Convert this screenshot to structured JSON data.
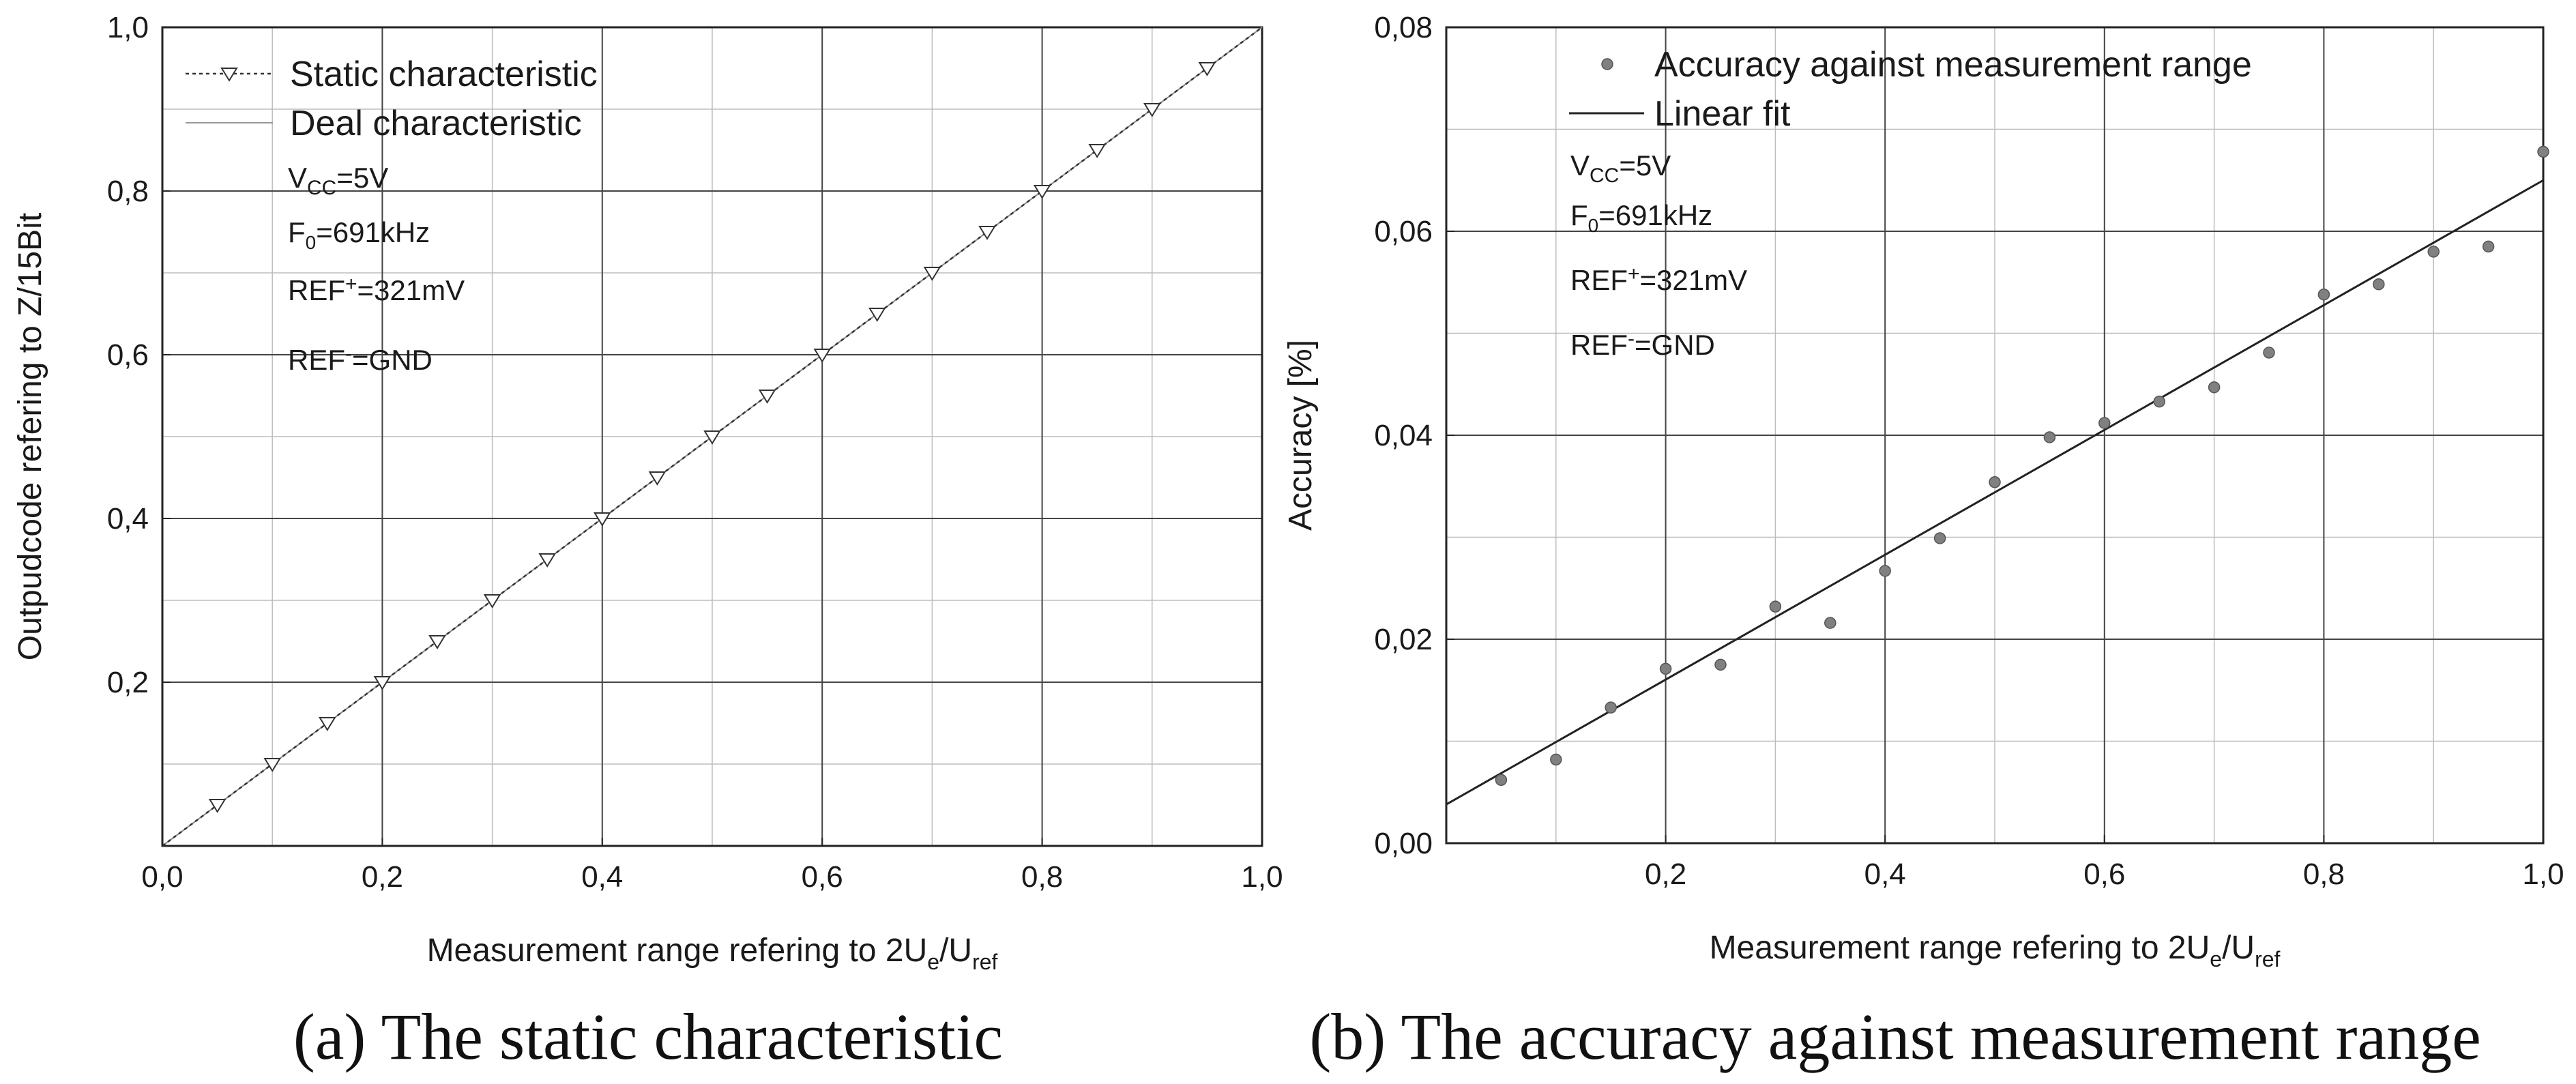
{
  "chart_data": [
    {
      "id": "a",
      "type": "line",
      "caption": "(a) The static characteristic",
      "xlabel": {
        "main": "Measurement range refering to 2U",
        "sub1": "e",
        "mid": "/U",
        "sub2": "ref"
      },
      "ylabel": "Outpudcode refering to Z/15Bit",
      "xlim": [
        0,
        1
      ],
      "ylim": [
        0,
        1
      ],
      "xticks": [
        {
          "v": 0.0,
          "label": "0,0"
        },
        {
          "v": 0.2,
          "label": "0,2"
        },
        {
          "v": 0.4,
          "label": "0,4"
        },
        {
          "v": 0.6,
          "label": "0,6"
        },
        {
          "v": 0.8,
          "label": "0,8"
        },
        {
          "v": 1.0,
          "label": "1,0"
        }
      ],
      "yticks": [
        {
          "v": 0.2,
          "label": "0,2"
        },
        {
          "v": 0.4,
          "label": "0,4"
        },
        {
          "v": 0.6,
          "label": "0,6"
        },
        {
          "v": 0.8,
          "label": "0,8"
        },
        {
          "v": 1.0,
          "label": "1,0"
        }
      ],
      "x_minor_grid": [
        0.1,
        0.3,
        0.5,
        0.7,
        0.9
      ],
      "y_minor_grid": [
        0.1,
        0.3,
        0.5,
        0.7,
        0.9
      ],
      "series": [
        {
          "name": "Static characteristic",
          "style": "dotted-with-triangle-markers",
          "x": [
            0.05,
            0.1,
            0.15,
            0.2,
            0.25,
            0.3,
            0.35,
            0.4,
            0.45,
            0.5,
            0.55,
            0.6,
            0.65,
            0.7,
            0.75,
            0.8,
            0.85,
            0.9,
            0.95
          ],
          "y": [
            0.05,
            0.1,
            0.15,
            0.2,
            0.25,
            0.3,
            0.35,
            0.4,
            0.45,
            0.5,
            0.55,
            0.6,
            0.65,
            0.7,
            0.75,
            0.8,
            0.85,
            0.9,
            0.95
          ]
        },
        {
          "name": "Deal characteristic",
          "style": "thin-solid-line",
          "x": [
            0,
            1
          ],
          "y": [
            0,
            1
          ]
        }
      ],
      "legend": [
        "Static characteristic",
        "Deal characteristic"
      ],
      "params": {
        "vcc": {
          "base": "V",
          "sub": "CC",
          "rest": "=5V"
        },
        "f0": {
          "base": "F",
          "sub": "0",
          "rest": "=691kHz"
        },
        "ref_plus": {
          "base": "REF",
          "sup": "+",
          "rest": "=321mV"
        },
        "ref_minus": {
          "base": "REF",
          "sup": "-",
          "rest": "=GND"
        }
      }
    },
    {
      "id": "b",
      "type": "scatter",
      "caption": "(b) The accuracy against measurement range",
      "xlabel": {
        "main": "Measurement range refering to 2U",
        "sub1": "e",
        "mid": "/U",
        "sub2": "ref"
      },
      "ylabel": "Accuracy [%]",
      "xlim": [
        0,
        1
      ],
      "ylim": [
        0,
        0.08
      ],
      "xticks": [
        {
          "v": 0.2,
          "label": "0,2"
        },
        {
          "v": 0.4,
          "label": "0,4"
        },
        {
          "v": 0.6,
          "label": "0,6"
        },
        {
          "v": 0.8,
          "label": "0,8"
        },
        {
          "v": 1.0,
          "label": "1,0"
        }
      ],
      "yticks": [
        {
          "v": 0.0,
          "label": "0,00"
        },
        {
          "v": 0.02,
          "label": "0,02"
        },
        {
          "v": 0.04,
          "label": "0,04"
        },
        {
          "v": 0.06,
          "label": "0,06"
        },
        {
          "v": 0.08,
          "label": "0,08"
        }
      ],
      "x_minor_grid": [
        0.1,
        0.3,
        0.5,
        0.7,
        0.9
      ],
      "y_minor_grid": [
        0.01,
        0.03,
        0.05,
        0.07
      ],
      "series": [
        {
          "name": "Accuracy against measurement range",
          "style": "gray-dots",
          "x": [
            0.05,
            0.1,
            0.15,
            0.2,
            0.25,
            0.3,
            0.35,
            0.4,
            0.45,
            0.5,
            0.55,
            0.6,
            0.65,
            0.7,
            0.75,
            0.8,
            0.85,
            0.9,
            0.95,
            1.0
          ],
          "y": [
            0.0062,
            0.0082,
            0.0133,
            0.0171,
            0.0175,
            0.0232,
            0.0216,
            0.0267,
            0.0299,
            0.0354,
            0.0398,
            0.0412,
            0.0433,
            0.0447,
            0.0481,
            0.0538,
            0.0548,
            0.058,
            0.0585,
            0.0678
          ]
        },
        {
          "name": "Linear fit",
          "style": "thin-solid-line",
          "x": [
            0,
            1
          ],
          "y": [
            0.0038,
            0.065
          ]
        }
      ],
      "legend": [
        "Accuracy against measurement range",
        "Linear fit"
      ],
      "params": {
        "vcc": {
          "base": "V",
          "sub": "CC",
          "rest": "=5V"
        },
        "f0": {
          "base": "F",
          "sub": "0",
          "rest": "=691kHz"
        },
        "ref_plus": {
          "base": "REF",
          "sup": "+",
          "rest": "=321mV"
        },
        "ref_minus": {
          "base": "REF",
          "sup": "-",
          "rest": "=GND"
        }
      }
    }
  ]
}
